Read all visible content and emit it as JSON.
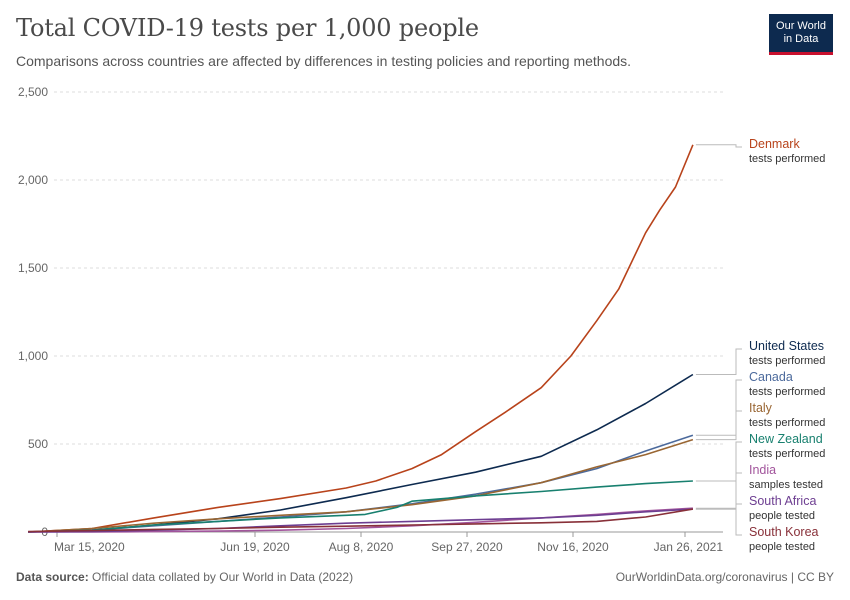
{
  "header": {
    "title": "Total COVID-19 tests per 1,000 people",
    "subtitle": "Comparisons across countries are affected by differences in testing policies and reporting methods."
  },
  "logo": {
    "line1": "Our World",
    "line2": "in Data"
  },
  "footer": {
    "source_label": "Data source:",
    "source_text": "Official data collated by Our World in Data (2022)",
    "url_text": "OurWorldinData.org/coronavirus | CC BY"
  },
  "chart_data": {
    "type": "line",
    "title": "Total COVID-19 tests per 1,000 people",
    "xlabel": "",
    "ylabel": "",
    "ylim": [
      0,
      2500
    ],
    "y_ticks": [
      0,
      500,
      1000,
      1500,
      2000,
      2500
    ],
    "y_tick_labels": [
      "0",
      "500",
      "1,000",
      "1,500",
      "2,000",
      "2,500"
    ],
    "x_ticks": [
      "2020-03-15",
      "2020-06-19",
      "2020-08-08",
      "2020-09-27",
      "2020-11-16",
      "2021-01-26"
    ],
    "x_tick_labels": [
      "Mar 15, 2020",
      "Jun 19, 2020",
      "Aug 8, 2020",
      "Sep 27, 2020",
      "Nov 16, 2020",
      "Jan 26, 2021"
    ],
    "xlim": [
      "2020-03-01",
      "2021-01-31"
    ],
    "grid": "horizontal dashed",
    "legend": "right (line-end labels)",
    "series": [
      {
        "name": "Denmark",
        "note": "tests performed",
        "color": "#b8431b",
        "x": [
          "2020-03-01",
          "2020-04-01",
          "2020-05-01",
          "2020-06-01",
          "2020-07-01",
          "2020-08-01",
          "2020-08-15",
          "2020-09-01",
          "2020-09-15",
          "2020-10-01",
          "2020-10-15",
          "2020-11-01",
          "2020-11-15",
          "2020-12-01",
          "2020-12-15",
          "2021-01-01",
          "2021-01-10",
          "2021-01-20",
          "2021-01-31"
        ],
        "values": [
          0,
          20,
          80,
          140,
          190,
          250,
          290,
          360,
          440,
          570,
          680,
          820,
          1000,
          1200,
          1380,
          1700,
          1830,
          1960,
          2200
        ]
      },
      {
        "name": "United States",
        "note": "tests performed",
        "color": "#0d2a4f",
        "x": [
          "2020-03-01",
          "2020-04-01",
          "2020-05-01",
          "2020-06-01",
          "2020-07-01",
          "2020-08-01",
          "2020-09-01",
          "2020-10-01",
          "2020-11-01",
          "2020-12-01",
          "2021-01-01",
          "2021-01-31"
        ],
        "values": [
          0,
          10,
          40,
          75,
          125,
          195,
          270,
          340,
          430,
          580,
          730,
          895
        ]
      },
      {
        "name": "Canada",
        "note": "tests performed",
        "color": "#4c6a9c",
        "x": [
          "2020-03-01",
          "2020-04-01",
          "2020-05-01",
          "2020-06-01",
          "2020-07-01",
          "2020-08-01",
          "2020-09-01",
          "2020-10-01",
          "2020-11-01",
          "2020-12-01",
          "2021-01-01",
          "2021-01-31"
        ],
        "values": [
          0,
          10,
          35,
          60,
          85,
          115,
          160,
          215,
          280,
          360,
          460,
          550
        ]
      },
      {
        "name": "Italy",
        "note": "tests performed",
        "color": "#996633",
        "x": [
          "2020-03-01",
          "2020-04-01",
          "2020-05-01",
          "2020-06-01",
          "2020-07-01",
          "2020-08-01",
          "2020-09-01",
          "2020-10-01",
          "2020-11-01",
          "2020-12-01",
          "2021-01-01",
          "2021-01-31"
        ],
        "values": [
          0,
          20,
          50,
          75,
          95,
          115,
          155,
          205,
          280,
          370,
          440,
          525
        ]
      },
      {
        "name": "New Zealand",
        "note": "tests performed",
        "color": "#18806f",
        "x": [
          "2020-03-01",
          "2020-04-01",
          "2020-05-01",
          "2020-06-01",
          "2020-07-01",
          "2020-08-01",
          "2020-08-10",
          "2020-08-25",
          "2020-09-01",
          "2020-10-01",
          "2020-11-01",
          "2020-12-01",
          "2021-01-01",
          "2021-01-31"
        ],
        "values": [
          0,
          10,
          40,
          60,
          80,
          95,
          100,
          140,
          175,
          205,
          230,
          255,
          275,
          290
        ]
      },
      {
        "name": "India",
        "note": "samples tested",
        "color": "#a2559c",
        "x": [
          "2020-03-01",
          "2020-04-01",
          "2020-05-01",
          "2020-06-01",
          "2020-07-01",
          "2020-08-01",
          "2020-09-01",
          "2020-10-01",
          "2020-11-01",
          "2020-12-01",
          "2021-01-01",
          "2021-01-31"
        ],
        "values": [
          0,
          0,
          2,
          5,
          10,
          20,
          35,
          55,
          80,
          100,
          120,
          135
        ]
      },
      {
        "name": "South Africa",
        "note": "people tested",
        "color": "#6d3e91",
        "x": [
          "2020-03-01",
          "2020-04-01",
          "2020-05-01",
          "2020-06-01",
          "2020-07-01",
          "2020-08-01",
          "2020-09-01",
          "2020-10-01",
          "2020-11-01",
          "2020-12-01",
          "2021-01-01",
          "2021-01-31"
        ],
        "values": [
          0,
          2,
          10,
          20,
          35,
          50,
          60,
          70,
          80,
          95,
          115,
          130
        ]
      },
      {
        "name": "South Korea",
        "note": "people tested",
        "color": "#883039",
        "x": [
          "2020-03-01",
          "2020-04-01",
          "2020-05-01",
          "2020-06-01",
          "2020-07-01",
          "2020-08-01",
          "2020-09-01",
          "2020-10-01",
          "2020-11-01",
          "2020-12-01",
          "2021-01-01",
          "2021-01-31"
        ],
        "values": [
          2,
          8,
          15,
          20,
          27,
          33,
          40,
          46,
          52,
          60,
          85,
          130
        ]
      }
    ]
  }
}
